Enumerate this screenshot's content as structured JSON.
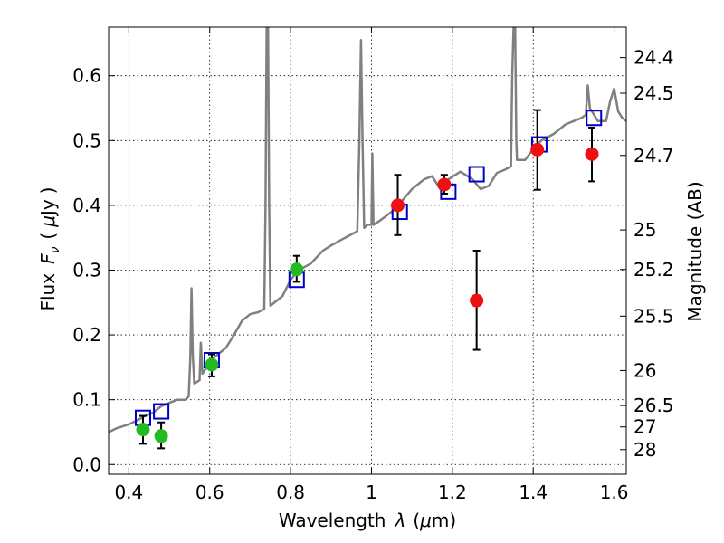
{
  "chart_data": {
    "type": "scatter",
    "xlabel": "Wavelength",
    "xlabel_symbol": "λ",
    "xlabel_unit_prefix": "μ",
    "xlabel_unit": "m",
    "ylabel": "Flux",
    "ylabel_symbol": "F",
    "ylabel_subscript": "ν",
    "ylabel_unit_prefix": "μ",
    "ylabel_unit": "Jy",
    "y2label": "Magnitude (AB)",
    "xlim": [
      0.35,
      1.63
    ],
    "ylim": [
      -0.015,
      0.675
    ],
    "grid": true,
    "x_ticks": [
      0.4,
      0.6,
      0.8,
      1.0,
      1.2,
      1.4,
      1.6
    ],
    "x_tick_labels": [
      "0.4",
      "0.6",
      "0.8",
      "1",
      "1.2",
      "1.4",
      "1.6"
    ],
    "y_ticks": [
      0.0,
      0.1,
      0.2,
      0.3,
      0.4,
      0.5,
      0.6
    ],
    "y_tick_labels": [
      "0.0",
      "0.1",
      "0.2",
      "0.3",
      "0.4",
      "0.5",
      "0.6"
    ],
    "y2_ticks": [
      {
        "label": "24.4",
        "flux": 0.628
      },
      {
        "label": "24.5",
        "flux": 0.573
      },
      {
        "label": "24.7",
        "flux": 0.477
      },
      {
        "label": "25",
        "flux": 0.362
      },
      {
        "label": "25.2",
        "flux": 0.301
      },
      {
        "label": "25.5",
        "flux": 0.229
      },
      {
        "label": "26",
        "flux": 0.145
      },
      {
        "label": "26.5",
        "flux": 0.091
      },
      {
        "label": "27",
        "flux": 0.058
      },
      {
        "label": "28",
        "flux": 0.023
      }
    ],
    "series": [
      {
        "kind": "spectrum",
        "color": "#808080",
        "points": [
          [
            0.35,
            0.05
          ],
          [
            0.37,
            0.056
          ],
          [
            0.4,
            0.062
          ],
          [
            0.42,
            0.068
          ],
          [
            0.44,
            0.075
          ],
          [
            0.46,
            0.08
          ],
          [
            0.48,
            0.09
          ],
          [
            0.5,
            0.095
          ],
          [
            0.52,
            0.1
          ],
          [
            0.54,
            0.1
          ],
          [
            0.548,
            0.105
          ],
          [
            0.552,
            0.165
          ],
          [
            0.555,
            0.272
          ],
          [
            0.558,
            0.17
          ],
          [
            0.562,
            0.125
          ],
          [
            0.575,
            0.13
          ],
          [
            0.578,
            0.188
          ],
          [
            0.582,
            0.14
          ],
          [
            0.59,
            0.148
          ],
          [
            0.6,
            0.16
          ],
          [
            0.62,
            0.17
          ],
          [
            0.64,
            0.18
          ],
          [
            0.66,
            0.2
          ],
          [
            0.68,
            0.222
          ],
          [
            0.7,
            0.232
          ],
          [
            0.72,
            0.235
          ],
          [
            0.735,
            0.24
          ],
          [
            0.738,
            0.4
          ],
          [
            0.741,
            0.69
          ],
          [
            0.744,
            0.69
          ],
          [
            0.747,
            0.4
          ],
          [
            0.75,
            0.245
          ],
          [
            0.78,
            0.26
          ],
          [
            0.8,
            0.285
          ],
          [
            0.82,
            0.3
          ],
          [
            0.85,
            0.31
          ],
          [
            0.88,
            0.33
          ],
          [
            0.9,
            0.338
          ],
          [
            0.92,
            0.345
          ],
          [
            0.95,
            0.355
          ],
          [
            0.965,
            0.36
          ],
          [
            0.97,
            0.5
          ],
          [
            0.974,
            0.655
          ],
          [
            0.978,
            0.5
          ],
          [
            0.982,
            0.365
          ],
          [
            0.99,
            0.37
          ],
          [
            1.0,
            0.37
          ],
          [
            1.002,
            0.48
          ],
          [
            1.005,
            0.37
          ],
          [
            1.02,
            0.376
          ],
          [
            1.05,
            0.39
          ],
          [
            1.08,
            0.41
          ],
          [
            1.1,
            0.425
          ],
          [
            1.13,
            0.44
          ],
          [
            1.15,
            0.445
          ],
          [
            1.17,
            0.425
          ],
          [
            1.19,
            0.44
          ],
          [
            1.22,
            0.452
          ],
          [
            1.25,
            0.44
          ],
          [
            1.27,
            0.425
          ],
          [
            1.29,
            0.43
          ],
          [
            1.31,
            0.45
          ],
          [
            1.33,
            0.455
          ],
          [
            1.345,
            0.46
          ],
          [
            1.348,
            0.6
          ],
          [
            1.352,
            0.69
          ],
          [
            1.355,
            0.69
          ],
          [
            1.358,
            0.5
          ],
          [
            1.36,
            0.47
          ],
          [
            1.38,
            0.47
          ],
          [
            1.4,
            0.487
          ],
          [
            1.42,
            0.5
          ],
          [
            1.45,
            0.51
          ],
          [
            1.48,
            0.525
          ],
          [
            1.5,
            0.53
          ],
          [
            1.52,
            0.535
          ],
          [
            1.53,
            0.54
          ],
          [
            1.535,
            0.585
          ],
          [
            1.54,
            0.55
          ],
          [
            1.56,
            0.53
          ],
          [
            1.58,
            0.53
          ],
          [
            1.59,
            0.56
          ],
          [
            1.6,
            0.58
          ],
          [
            1.61,
            0.545
          ],
          [
            1.62,
            0.535
          ],
          [
            1.63,
            0.53
          ]
        ]
      },
      {
        "kind": "model_open_squares",
        "color": "#0000cc",
        "points": [
          [
            0.435,
            0.072
          ],
          [
            0.48,
            0.082
          ],
          [
            0.605,
            0.161
          ],
          [
            0.815,
            0.285
          ],
          [
            1.07,
            0.39
          ],
          [
            1.19,
            0.421
          ],
          [
            1.26,
            0.448
          ],
          [
            1.415,
            0.494
          ],
          [
            1.55,
            0.535
          ]
        ]
      },
      {
        "kind": "green_points",
        "color": "#22bb22",
        "points": [
          {
            "x": 0.435,
            "y": 0.054,
            "err_low": 0.032,
            "err_high": 0.075
          },
          {
            "x": 0.48,
            "y": 0.044,
            "err_low": 0.025,
            "err_high": 0.065
          },
          {
            "x": 0.605,
            "y": 0.154,
            "err_low": 0.136,
            "err_high": 0.17
          },
          {
            "x": 0.815,
            "y": 0.301,
            "err_low": 0.282,
            "err_high": 0.322
          }
        ]
      },
      {
        "kind": "red_points",
        "color": "#ee1111",
        "points": [
          {
            "x": 1.065,
            "y": 0.4,
            "err_low": 0.354,
            "err_high": 0.447
          },
          {
            "x": 1.18,
            "y": 0.432,
            "err_low": 0.418,
            "err_high": 0.447
          },
          {
            "x": 1.26,
            "y": 0.253,
            "err_low": 0.177,
            "err_high": 0.33
          },
          {
            "x": 1.41,
            "y": 0.486,
            "err_low": 0.424,
            "err_high": 0.547
          },
          {
            "x": 1.545,
            "y": 0.479,
            "err_low": 0.437,
            "err_high": 0.52
          }
        ]
      }
    ]
  }
}
